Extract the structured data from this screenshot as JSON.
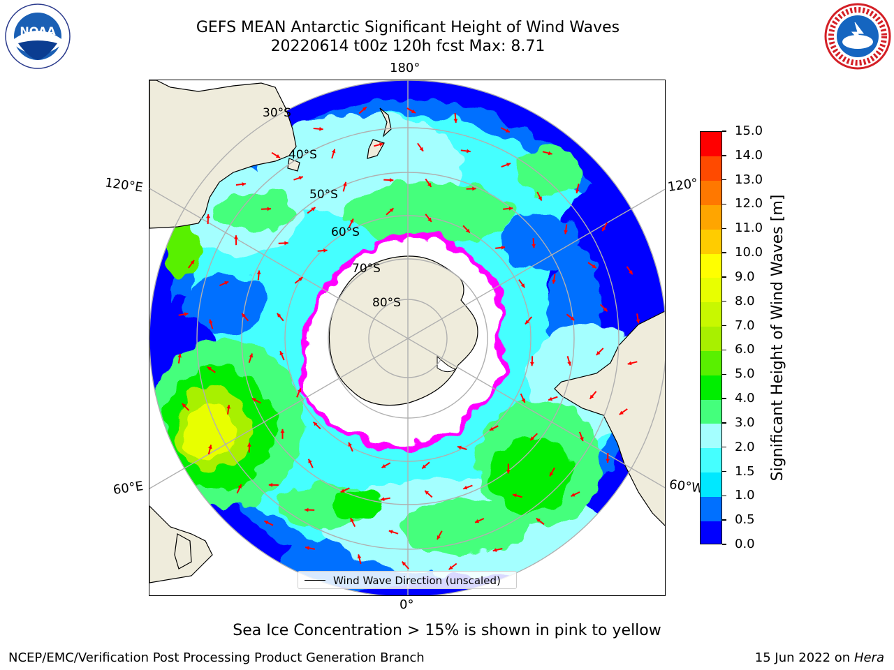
{
  "title": {
    "line1": "GEFS MEAN Antarctic Significant Height of Wind Waves",
    "line2": "20220614 t00z 120h fcst   Max: 8.71"
  },
  "logos": {
    "left": {
      "icon": "noaa-logo",
      "text": "NOAA",
      "ring_text": "NATIONAL OCEANIC AND ATMOSPHERIC ADMINISTRATION  U.S. DEPARTMENT OF COMMERCE"
    },
    "right": {
      "icon": "national-weather-service-logo",
      "ring_text": "NATIONAL WEATHER SERVICE"
    }
  },
  "map": {
    "projection": "south-polar-stereographic",
    "longitude_labels": {
      "top": "180°",
      "bottom": "0°",
      "upper_left": "120°E",
      "upper_right": "120°",
      "lower_left": "60°E",
      "lower_right": "60°W"
    },
    "latitude_labels": [
      "30°S",
      "40°S",
      "50°S",
      "60°S",
      "70°S",
      "80°S"
    ],
    "colors": {
      "land": "#efecdc",
      "ice_edge": "#ff00ff",
      "ice_fill": "#ffffff",
      "arrow": "#ff0000",
      "grid": "#b0b0b0",
      "coast": "#000000"
    },
    "legend_label": "Wind Wave Direction (unscaled)"
  },
  "colorbar": {
    "title": "Significant Height of Wind Waves [m]",
    "tick_labels": [
      "0.0",
      "0.5",
      "1.0",
      "1.5",
      "2.0",
      "3.0",
      "4.0",
      "5.0",
      "6.0",
      "7.0",
      "8.0",
      "9.0",
      "10.0",
      "11.0",
      "12.0",
      "13.0",
      "14.0",
      "15.0"
    ],
    "colors": [
      "#0000ff",
      "#0070ff",
      "#00e8ff",
      "#45ffff",
      "#a4ffff",
      "#44ff7c",
      "#00ee00",
      "#59f000",
      "#a8f000",
      "#c8f800",
      "#e8ff00",
      "#ffff00",
      "#ffcc00",
      "#ffa500",
      "#ff7800",
      "#ff4a00",
      "#ff0000"
    ]
  },
  "footnote": "Sea Ice Concentration > 15% is shown in pink to yellow",
  "credit": "NCEP/EMC/Verification Post Processing Product Generation Branch",
  "datestamp": {
    "date": "15 Jun 2022 on",
    "host": "Hera"
  }
}
